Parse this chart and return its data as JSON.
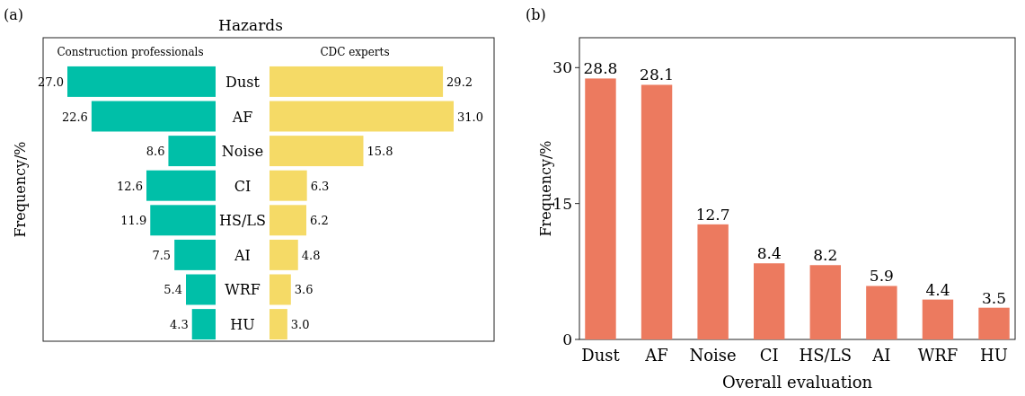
{
  "chart_data": [
    {
      "type": "bar",
      "orientation": "horizontal",
      "title": "Hazards",
      "ylabel": "Frequency/%",
      "annotations": [
        "(a)"
      ],
      "categories": [
        "Dust",
        "AF",
        "Noise",
        "CI",
        "HS/LS",
        "AI",
        "WRF",
        "HU"
      ],
      "series": [
        {
          "name": "Construction professionals",
          "color": "#00bfa8",
          "values": [
            27.0,
            22.6,
            8.6,
            12.6,
            11.9,
            7.5,
            5.4,
            4.3
          ],
          "value_labels": [
            "27.0",
            "22.6",
            "8.6",
            "12.6",
            "11.9",
            "7.5",
            "5.4",
            "4.3"
          ]
        }
      ]
    },
    {
      "type": "bar",
      "orientation": "horizontal",
      "categories": [
        null,
        null,
        null,
        null,
        null,
        null,
        null,
        null
      ],
      "series": [
        {
          "name": "CDC experts",
          "color": "#f5da66",
          "values": [
            29.2,
            31.0,
            15.8,
            6.3,
            6.2,
            4.8,
            3.6,
            3.0
          ],
          "value_labels": [
            "29.2",
            "31.0",
            "15.8",
            "6.3",
            "6.2",
            "4.8",
            "3.6",
            "3.0"
          ]
        }
      ]
    },
    {
      "type": "bar",
      "xlabel": "Overall evaluation",
      "ylabel": "Frequency/%",
      "annotations": [
        "(b)"
      ],
      "categories": [
        "Dust",
        "AF",
        "Noise",
        "CI",
        "HS/LS",
        "AI",
        "WRF",
        "HU"
      ],
      "values": [
        28.8,
        28.1,
        12.7,
        8.4,
        8.2,
        5.9,
        4.4,
        3.5
      ],
      "color": "#ec7a5f",
      "ylim": [
        0,
        33.3
      ],
      "yticks": [
        0,
        15,
        30
      ],
      "data_labels": true
    }
  ]
}
